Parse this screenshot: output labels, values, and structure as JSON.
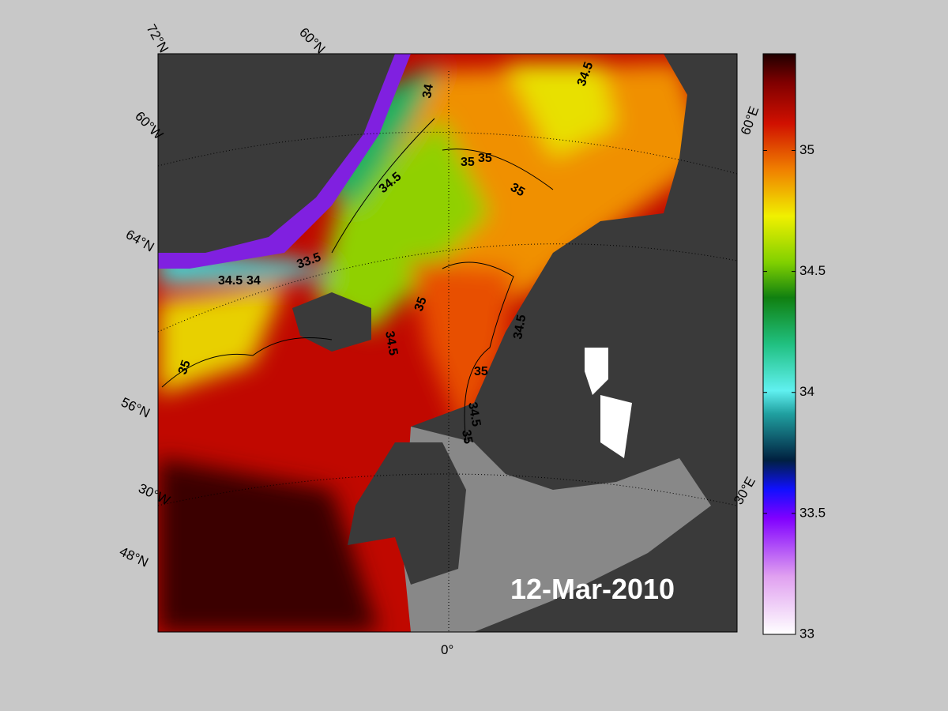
{
  "map": {
    "date": "12-Mar-2010",
    "graticule_labels": [
      "72°N",
      "60°N",
      "60°W",
      "64°N",
      "56°N",
      "30°W",
      "48°N",
      "0°",
      "60°E",
      "30°E"
    ],
    "contour_labels": [
      "34",
      "34.5",
      "35",
      "35",
      "35",
      "34.5",
      "33.5",
      "34.5",
      "34",
      "34.5",
      "35",
      "34.5",
      "35",
      "35",
      "34.5",
      "35"
    ]
  },
  "colorbar": {
    "lim": [
      33,
      35.4
    ],
    "ticks": [
      33,
      33.5,
      34,
      34.5,
      35
    ]
  }
}
